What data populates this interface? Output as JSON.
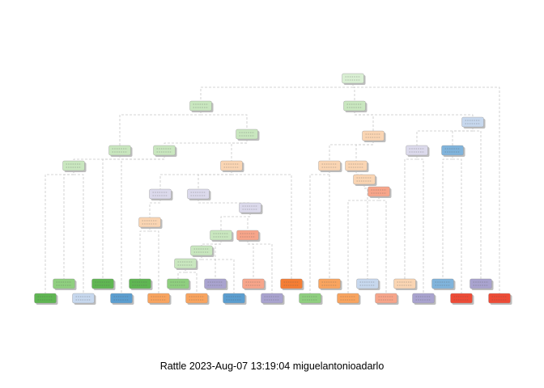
{
  "caption": "Rattle 2023-Aug-07 13:19:04 miguelantonioadarlo",
  "colors": {
    "edge": "#c8c8c8",
    "root": "#d9efd3",
    "light_green": "#c9e7bf",
    "green": "#8fcf7f",
    "dark_green": "#5fb652",
    "light_blue": "#c7d8ee",
    "blue": "#80b4dc",
    "mid_blue": "#5b9ed0",
    "light_orange": "#fad5b3",
    "orange": "#f9a45f",
    "dark_orange": "#f57d33",
    "light_purple": "#dcdaec",
    "purple": "#a9a3cf",
    "salmon": "#f7a58a",
    "red": "#ee4b36",
    "shadow": "#bdbdbd"
  },
  "nodes": [
    {
      "id": "n1",
      "color": "root",
      "parent": null
    },
    {
      "id": "n2",
      "color": "light_green",
      "parent": "n1"
    },
    {
      "id": "n3",
      "color": "light_green",
      "parent": "n1"
    },
    {
      "id": "n4",
      "color": "light_blue",
      "parent": "n3"
    },
    {
      "id": "n5",
      "color": "light_green",
      "parent": "n2"
    },
    {
      "id": "n6",
      "color": "light_orange",
      "parent": "n3"
    },
    {
      "id": "n7",
      "color": "light_purple",
      "parent": "n4"
    },
    {
      "id": "n8",
      "color": "blue",
      "parent": "n4"
    },
    {
      "id": "n9",
      "color": "light_green",
      "parent": "n2"
    },
    {
      "id": "n10",
      "color": "light_green",
      "parent": "n5"
    },
    {
      "id": "n11",
      "color": "light_green",
      "parent": "n9"
    },
    {
      "id": "n12",
      "color": "light_orange",
      "parent": "n5"
    },
    {
      "id": "n13",
      "color": "light_orange",
      "parent": "n6"
    },
    {
      "id": "n14",
      "color": "light_orange",
      "parent": "n6"
    },
    {
      "id": "n15",
      "color": "light_orange",
      "parent": "n14"
    },
    {
      "id": "n16",
      "color": "salmon",
      "parent": "n15"
    },
    {
      "id": "n17",
      "color": "light_purple",
      "parent": "n12"
    },
    {
      "id": "n18",
      "color": "light_purple",
      "parent": "n12"
    },
    {
      "id": "n19",
      "color": "light_purple",
      "parent": "n18"
    },
    {
      "id": "n20",
      "color": "light_orange",
      "parent": "n17"
    },
    {
      "id": "n21",
      "color": "light_green",
      "parent": "n19"
    },
    {
      "id": "n22",
      "color": "salmon",
      "parent": "n19"
    },
    {
      "id": "n23",
      "color": "light_green",
      "parent": "n21"
    },
    {
      "id": "n24",
      "color": "light_green",
      "parent": "n23"
    },
    {
      "id": "u1",
      "color": "green",
      "parent": "n11"
    },
    {
      "id": "u2",
      "color": "dark_green",
      "parent": "n10"
    },
    {
      "id": "u3",
      "color": "dark_green",
      "parent": "n20"
    },
    {
      "id": "u4",
      "color": "green",
      "parent": "n24"
    },
    {
      "id": "u5",
      "color": "purple",
      "parent": "n21"
    },
    {
      "id": "u6",
      "color": "salmon",
      "parent": "n22"
    },
    {
      "id": "u7",
      "color": "dark_orange",
      "parent": "n12"
    },
    {
      "id": "u8",
      "color": "orange",
      "parent": "n13"
    },
    {
      "id": "u9",
      "color": "light_blue",
      "parent": "n15"
    },
    {
      "id": "u10",
      "color": "light_orange",
      "parent": "n7"
    },
    {
      "id": "u11",
      "color": "blue",
      "parent": "n8"
    },
    {
      "id": "u12",
      "color": "purple",
      "parent": "n4"
    },
    {
      "id": "l1",
      "color": "dark_green",
      "parent": "n11"
    },
    {
      "id": "l2",
      "color": "light_blue",
      "parent": "n11"
    },
    {
      "id": "l3",
      "color": "mid_blue",
      "parent": "n10"
    },
    {
      "id": "l4",
      "color": "orange",
      "parent": "n20"
    },
    {
      "id": "l5",
      "color": "orange",
      "parent": "n24"
    },
    {
      "id": "l6",
      "color": "mid_blue",
      "parent": "n23"
    },
    {
      "id": "l7",
      "color": "purple",
      "parent": "n22"
    },
    {
      "id": "l8",
      "color": "green",
      "parent": "n13"
    },
    {
      "id": "l9",
      "color": "orange",
      "parent": "n16"
    },
    {
      "id": "l10",
      "color": "salmon",
      "parent": "n16"
    },
    {
      "id": "l11",
      "color": "purple",
      "parent": "n7"
    },
    {
      "id": "l12",
      "color": "red",
      "parent": "n8"
    },
    {
      "id": "l13",
      "color": "red",
      "parent": "n1"
    }
  ]
}
